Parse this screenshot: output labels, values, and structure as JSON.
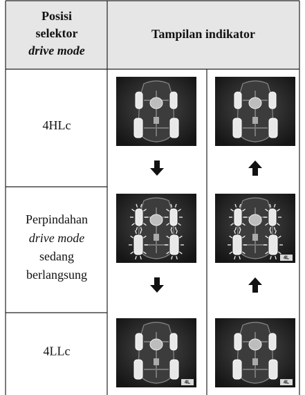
{
  "table": {
    "header": {
      "selector": [
        {
          "text": "Posisi"
        },
        {
          "text": "selektor"
        },
        {
          "text": "drive mode",
          "italic": true
        }
      ],
      "indicator": "Tampilan indikator"
    },
    "rows": [
      {
        "label": [
          {
            "text": "4HLc"
          }
        ],
        "arrows": true,
        "images": [
          {
            "blinking": false
          },
          {
            "blinking": false
          }
        ]
      },
      {
        "label": [
          {
            "text": "Perpindahan"
          },
          {
            "text": "drive mode",
            "italic": true
          },
          {
            "text": "sedang"
          },
          {
            "text": "berlangsung"
          }
        ],
        "arrows": true,
        "images": [
          {
            "blinking": true
          },
          {
            "blinking": true,
            "badge": "4L"
          }
        ]
      },
      {
        "label": [
          {
            "text": "4LLc"
          }
        ],
        "arrows": false,
        "images": [
          {
            "blinking": false,
            "badge": "4L"
          },
          {
            "blinking": false,
            "badge": "4L"
          }
        ]
      }
    ]
  }
}
